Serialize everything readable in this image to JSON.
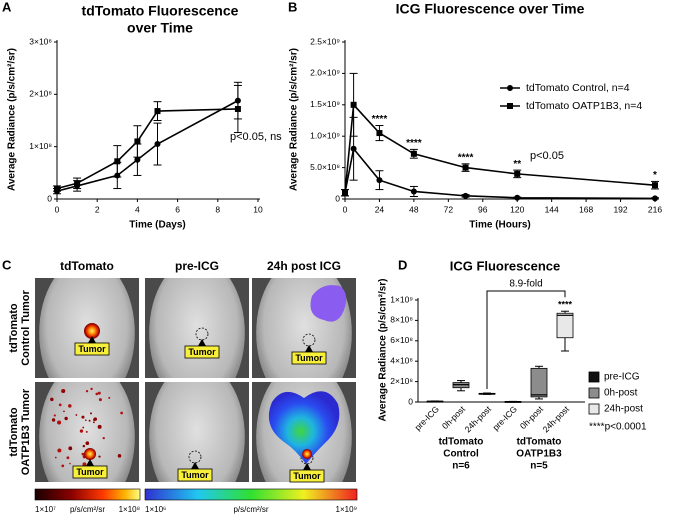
{
  "panel_labels": [
    "A",
    "B",
    "C",
    "D"
  ],
  "chart_data": [
    {
      "type": "line",
      "title": [
        "tdTomato Fluorescence",
        "over Time"
      ],
      "x_label": "Time (Days)",
      "y_label": "Average Radiance (p/s/cm²/sr)",
      "x": [
        0,
        1,
        3,
        4,
        5,
        9
      ],
      "xlim": [
        0,
        10
      ],
      "xticks": [
        0,
        2,
        4,
        6,
        8,
        10
      ],
      "ylim": [
        0,
        300000000
      ],
      "yticks": [
        0,
        {
          "value": 100000000,
          "label": "1×10⁸"
        },
        {
          "value": 200000000,
          "label": "2×10⁸"
        },
        {
          "value": 300000000,
          "label": "3×10⁸"
        }
      ],
      "series": [
        {
          "marker": "circle",
          "color": "#000000",
          "values": [
            15000000,
            25000000,
            45000000,
            75000000,
            105000000,
            188000000
          ],
          "errors": [
            5000000,
            10000000,
            25000000,
            30000000,
            40000000,
            35000000
          ]
        },
        {
          "marker": "square",
          "color": "#000000",
          "values": [
            20000000,
            30000000,
            72000000,
            110000000,
            168000000,
            172000000
          ],
          "errors": [
            5000000,
            10000000,
            30000000,
            30000000,
            18000000,
            45000000
          ]
        }
      ],
      "annotations": [
        "p<0.05, ns"
      ]
    },
    {
      "type": "line",
      "title": [
        "ICG Fluorescence over Time"
      ],
      "x_label": "Time (Hours)",
      "y_label": "Average Radiance (p/s/cm²/sr)",
      "x": [
        0,
        6,
        24,
        48,
        84,
        120,
        216
      ],
      "xlim": [
        0,
        216
      ],
      "xticks": [
        0,
        24,
        48,
        72,
        96,
        120,
        144,
        168,
        192,
        216
      ],
      "ylim": [
        0,
        2500000000
      ],
      "yticks": [
        0,
        {
          "value": 500000000,
          "label": "5.0×10⁸"
        },
        {
          "value": 1000000000,
          "label": "1.0×10⁹"
        },
        {
          "value": 1500000000,
          "label": "1.5×10⁹"
        },
        {
          "value": 2000000000,
          "label": "2.0×10⁹"
        },
        {
          "value": 2500000000,
          "label": "2.5×10⁹"
        }
      ],
      "legend": "upper right",
      "series": [
        {
          "name": "tdTomato Control, n=4",
          "marker": "circle",
          "color": "#000000",
          "values": [
            100000000,
            800000000,
            300000000,
            120000000,
            50000000,
            20000000,
            10000000
          ],
          "errors": [
            50000000,
            500000000,
            150000000,
            80000000,
            20000000,
            10000000,
            10000000
          ]
        },
        {
          "name": "tdTomato OATP1B3, n=4",
          "marker": "square",
          "color": "#000000",
          "values": [
            100000000,
            1500000000,
            1050000000,
            720000000,
            500000000,
            400000000,
            220000000
          ],
          "errors": [
            50000000,
            500000000,
            120000000,
            70000000,
            60000000,
            60000000,
            60000000
          ],
          "sig_labels": [
            null,
            null,
            "****",
            "****",
            "****",
            "**",
            "*"
          ]
        }
      ],
      "annotations": [
        "p<0.05"
      ]
    },
    {
      "type": "box",
      "title": "ICG Fluorescence",
      "y_label": "Average Radiance (p/s/cm²/sr)",
      "categories": [
        [
          "tdTomato",
          "Control"
        ],
        [
          "tdTomato",
          "OATP1B3"
        ]
      ],
      "n": [
        "n=6",
        "n=5"
      ],
      "ylim": [
        0,
        1000000000
      ],
      "yticks": [
        0,
        {
          "value": 200000000,
          "label": "2×10⁸"
        },
        {
          "value": 400000000,
          "label": "4×10⁸"
        },
        {
          "value": 600000000,
          "label": "6×10⁸"
        },
        {
          "value": 800000000,
          "label": "8×10⁸"
        },
        {
          "value": 1000000000,
          "label": "1×10⁹"
        }
      ],
      "series": [
        {
          "name": "pre-ICG",
          "color": "#111111",
          "boxes": [
            {
              "min": 5000000,
              "q1": 6000000,
              "median": 7000000,
              "q3": 8000000,
              "max": 10000000
            },
            {
              "min": 2000000,
              "q1": 3000000,
              "median": 4000000,
              "q3": 5000000,
              "max": 6000000
            }
          ]
        },
        {
          "name": "0h-post",
          "color": "#8c8c8c",
          "boxes": [
            {
              "min": 110000000,
              "q1": 140000000,
              "median": 170000000,
              "q3": 190000000,
              "max": 210000000
            },
            {
              "min": 30000000,
              "q1": 50000000,
              "median": 70000000,
              "q3": 330000000,
              "max": 350000000
            }
          ]
        },
        {
          "name": "24h-post",
          "color": "#e8e8e8",
          "boxes": [
            {
              "min": 75000000,
              "q1": 78000000,
              "median": 80000000,
              "q3": 85000000,
              "max": 88000000
            },
            {
              "min": 500000000,
              "q1": 630000000,
              "median": 850000000,
              "q3": 870000000,
              "max": 890000000
            }
          ],
          "sig_labels": [
            null,
            "****"
          ]
        }
      ],
      "bracket": "8.9-fold",
      "legend_note": "****p<0.0001"
    }
  ],
  "panel_c": {
    "columns": [
      "tdTomato",
      "pre-ICG",
      "24h post ICG"
    ],
    "rows": [
      [
        "tdTomato",
        "Control Tumor"
      ],
      [
        "tdTomato",
        "OATP1B3 Tumor"
      ]
    ],
    "tumor_label": "Tumor",
    "colorbars": [
      {
        "min": "1×10⁷",
        "unit": "p/s/cm²/sr",
        "max": "1×10⁸"
      },
      {
        "min": "1×10⁶",
        "unit": "p/s/cm²/sr",
        "max": "1×10⁹"
      }
    ]
  }
}
